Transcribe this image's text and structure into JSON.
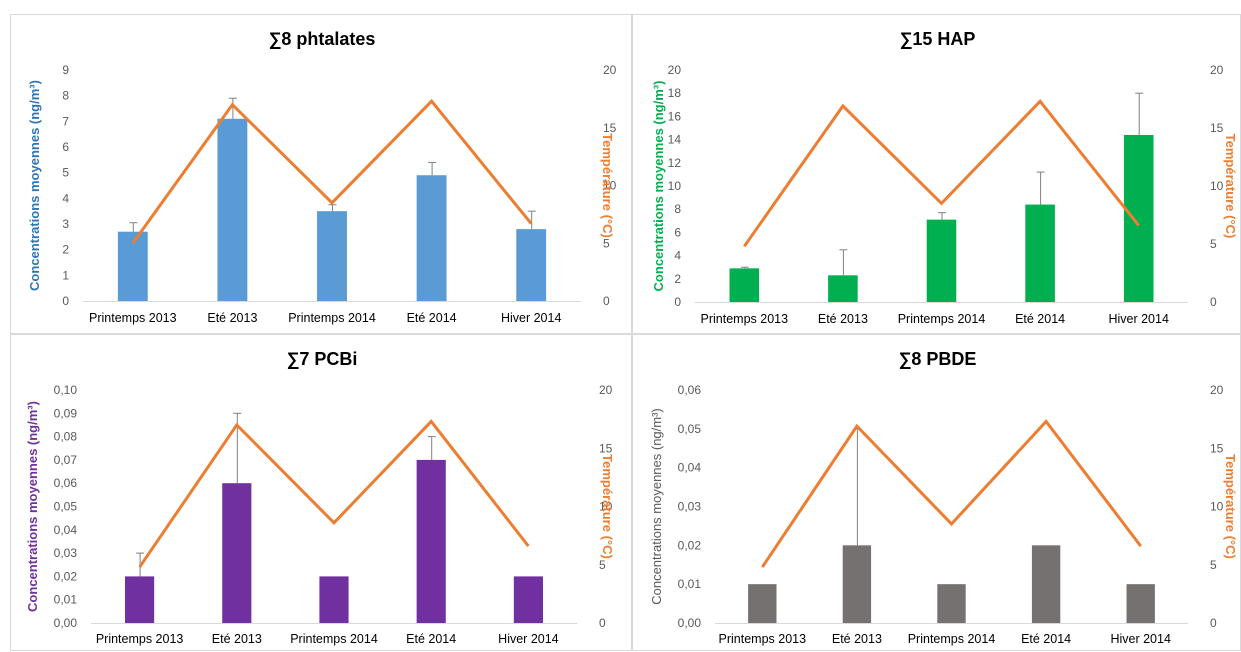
{
  "temperature": {
    "ylabel": "Température (°C)",
    "ylabel_color": "#ED7D31",
    "line_color": "#ED7D31",
    "ylim": [
      0,
      20
    ],
    "ticks": [
      0,
      5,
      10,
      15,
      20
    ]
  },
  "chart_data": [
    {
      "type": "bar",
      "title": "∑8 phtalates",
      "categories": [
        "Printemps 2013",
        "Eté 2013",
        "Printemps 2014",
        "Eté 2014",
        "Hiver 2014"
      ],
      "ylabel": "Concentrations  moyennes (ng/m³)",
      "ylabel_bold": true,
      "ylim": [
        0,
        9
      ],
      "yticks": [
        "0",
        "1",
        "2",
        "3",
        "4",
        "5",
        "6",
        "7",
        "8",
        "9"
      ],
      "bar_color": "#5B9BD5",
      "ylabel_color": "#2E75B6",
      "values": [
        2.7,
        7.1,
        3.5,
        4.9,
        2.8
      ],
      "error_upper": [
        3.05,
        7.9,
        3.75,
        5.4,
        3.5
      ],
      "temperature": [
        5.0,
        17.0,
        8.5,
        17.3,
        6.7
      ],
      "grid": false
    },
    {
      "type": "bar",
      "title": "∑15 HAP",
      "categories": [
        "Printemps 2013",
        "Eté 2013",
        "Printemps 2014",
        "Eté 2014",
        "Hiver 2014"
      ],
      "ylabel": "Concentrations moyennes (ng/m³)",
      "ylabel_bold": true,
      "ylim": [
        0,
        20
      ],
      "yticks": [
        "0",
        "2",
        "4",
        "6",
        "8",
        "10",
        "12",
        "14",
        "16",
        "18",
        "20"
      ],
      "bar_color": "#00B050",
      "ylabel_color": "#00B050",
      "values": [
        2.9,
        2.3,
        7.1,
        8.4,
        14.4
      ],
      "error_upper": [
        3.0,
        4.5,
        7.7,
        11.2,
        18.0
      ],
      "temperature": [
        4.8,
        16.9,
        8.5,
        17.3,
        6.6
      ],
      "grid": false
    },
    {
      "type": "bar",
      "title": "∑7 PCBi",
      "categories": [
        "Printemps 2013",
        "Eté 2013",
        "Printemps 2014",
        "Eté 2014",
        "Hiver 2014"
      ],
      "ylabel": "Concentrations moyennes (ng/m³)",
      "ylabel_bold": true,
      "ylim": [
        0,
        0.1
      ],
      "yticks": [
        "0,00",
        "0,01",
        "0,02",
        "0,03",
        "0,04",
        "0,05",
        "0,06",
        "0,07",
        "0,08",
        "0,09",
        "0,10"
      ],
      "bar_color": "#7030A0",
      "ylabel_color": "#7030A0",
      "values": [
        0.02,
        0.06,
        0.02,
        0.07,
        0.02
      ],
      "error_upper": [
        0.03,
        0.09,
        null,
        0.08,
        null
      ],
      "temperature": [
        4.8,
        17.0,
        8.6,
        17.3,
        6.6
      ],
      "grid": false
    },
    {
      "type": "bar",
      "title": "∑8 PBDE",
      "categories": [
        "Printemps 2013",
        "Eté 2013",
        "Printemps 2014",
        "Eté 2014",
        "Hiver 2014"
      ],
      "ylabel": "Concentrations moyennes (ng/m³)",
      "ylabel_bold": false,
      "ylim": [
        0,
        0.06
      ],
      "yticks": [
        "0,00",
        "0,01",
        "0,02",
        "0,03",
        "0,04",
        "0,05",
        "0,06"
      ],
      "bar_color": "#767171",
      "ylabel_color": "#595959",
      "values": [
        0.01,
        0.02,
        0.01,
        0.02,
        0.01
      ],
      "error_upper": [
        null,
        0.05,
        null,
        null,
        null
      ],
      "temperature": [
        4.8,
        16.9,
        8.5,
        17.3,
        6.6
      ],
      "grid": false
    }
  ]
}
